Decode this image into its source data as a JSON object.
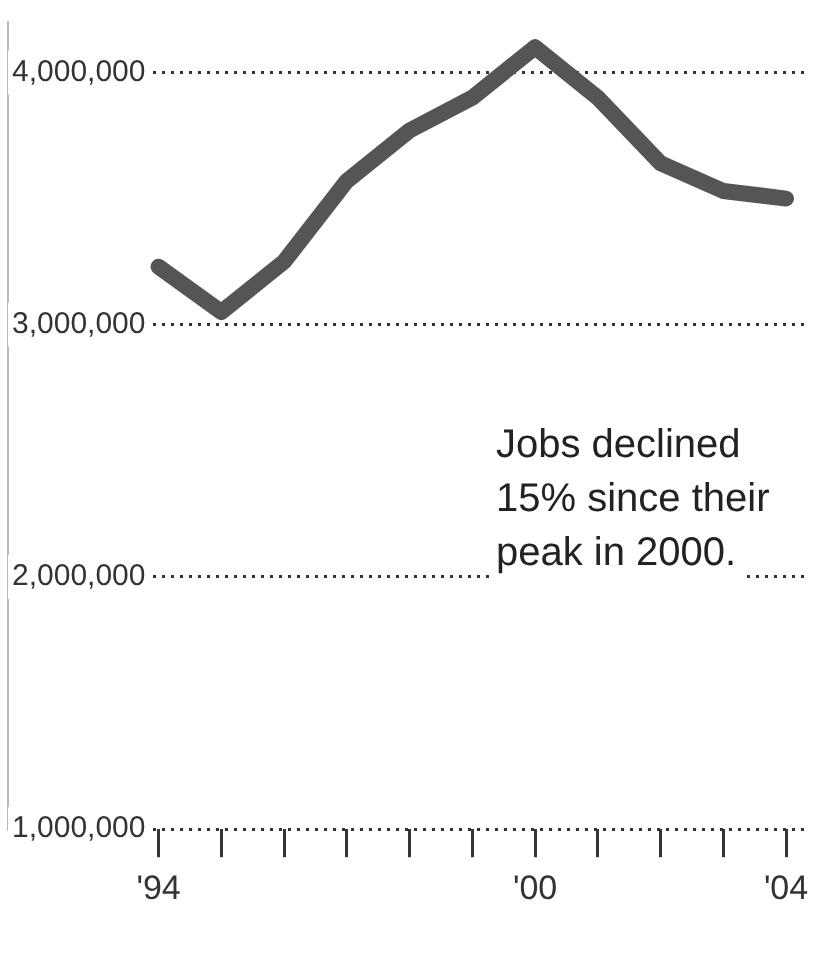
{
  "chart_data": {
    "type": "line",
    "x": [
      1994,
      1995,
      1996,
      1997,
      1998,
      1999,
      2000,
      2001,
      2002,
      2003,
      2004
    ],
    "series": [
      {
        "color": "#555555",
        "values": [
          3230000,
          3050000,
          3250000,
          3570000,
          3770000,
          3900000,
          4100000,
          3900000,
          3640000,
          3530000,
          3500000
        ]
      }
    ],
    "xlim": [
      1991.6,
      2004.35
    ],
    "xticks": [
      {
        "value": 1994,
        "label": "'94"
      },
      {
        "value": 1995,
        "label": null
      },
      {
        "value": 1996,
        "label": null
      },
      {
        "value": 1997,
        "label": null
      },
      {
        "value": 1998,
        "label": null
      },
      {
        "value": 1999,
        "label": null
      },
      {
        "value": 2000,
        "label": "'00"
      },
      {
        "value": 2001,
        "label": null
      },
      {
        "value": 2002,
        "label": null
      },
      {
        "value": 2003,
        "label": null
      },
      {
        "value": 2004,
        "label": "'04"
      }
    ],
    "ylim": [
      1000000,
      4200000
    ],
    "yticks": [
      {
        "value": 1000000,
        "label": "1,000,000"
      },
      {
        "value": 2000000,
        "label": "2,000,000"
      },
      {
        "value": 3000000,
        "label": "3,000,000"
      },
      {
        "value": 4000000,
        "label": "4,000,000"
      }
    ],
    "grid": "y",
    "legend": false,
    "marker": "none",
    "line_style": "solid",
    "annotations": [
      "Jobs declined 15% since their peak in 2000."
    ]
  }
}
